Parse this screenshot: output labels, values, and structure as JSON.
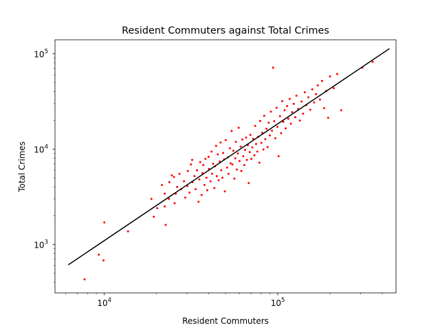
{
  "chart_data": {
    "type": "scatter",
    "title": "Resident Commuters against Total Crimes",
    "xlabel": "Resident Commuters",
    "ylabel": "Total Crimes",
    "xscale": "log",
    "yscale": "log",
    "xlim": [
      5200,
      480000
    ],
    "ylim": [
      310,
      140000
    ],
    "x_ticks": [
      {
        "base": "10",
        "exp": "4",
        "value": 10000
      },
      {
        "base": "10",
        "exp": "5",
        "value": 100000
      }
    ],
    "y_ticks": [
      {
        "base": "10",
        "exp": "3",
        "value": 1000
      },
      {
        "base": "10",
        "exp": "4",
        "value": 10000
      },
      {
        "base": "10",
        "exp": "5",
        "value": 100000
      }
    ],
    "grid": false,
    "colors": {
      "points": "#ff0000",
      "fit_line": "#000000",
      "axes": "#000000"
    },
    "fit_line": {
      "x": [
        6200,
        440000
      ],
      "y": [
        610,
        113000
      ]
    },
    "points": [
      [
        7700,
        430
      ],
      [
        9300,
        780
      ],
      [
        9900,
        680
      ],
      [
        10000,
        1700
      ],
      [
        13700,
        1370
      ],
      [
        18700,
        3000
      ],
      [
        19300,
        1950
      ],
      [
        20200,
        2400
      ],
      [
        21500,
        4200
      ],
      [
        22300,
        2500
      ],
      [
        22600,
        1600
      ],
      [
        22300,
        3400
      ],
      [
        23700,
        4500
      ],
      [
        23600,
        3000
      ],
      [
        24500,
        5300
      ],
      [
        25200,
        5100
      ],
      [
        25800,
        3400
      ],
      [
        26300,
        4000
      ],
      [
        25400,
        2700
      ],
      [
        27100,
        5500
      ],
      [
        27700,
        3800
      ],
      [
        28800,
        4600
      ],
      [
        29300,
        3100
      ],
      [
        30300,
        5900
      ],
      [
        30100,
        4100
      ],
      [
        31000,
        3500
      ],
      [
        31600,
        6900
      ],
      [
        32100,
        7700
      ],
      [
        32200,
        4500
      ],
      [
        33100,
        5200
      ],
      [
        33600,
        3800
      ],
      [
        34200,
        6000
      ],
      [
        34900,
        2800
      ],
      [
        35300,
        4800
      ],
      [
        35700,
        7300
      ],
      [
        36400,
        3300
      ],
      [
        36800,
        5600
      ],
      [
        37200,
        6800
      ],
      [
        37800,
        4200
      ],
      [
        38300,
        7900
      ],
      [
        38800,
        5000
      ],
      [
        39200,
        3700
      ],
      [
        39900,
        8300
      ],
      [
        40100,
        6200
      ],
      [
        40900,
        4600
      ],
      [
        41500,
        9400
      ],
      [
        41800,
        5500
      ],
      [
        42400,
        7000
      ],
      [
        43100,
        3900
      ],
      [
        43500,
        6600
      ],
      [
        44100,
        10800
      ],
      [
        44500,
        5200
      ],
      [
        45100,
        8800
      ],
      [
        45600,
        4700
      ],
      [
        46300,
        7400
      ],
      [
        46800,
        11700
      ],
      [
        47200,
        6000
      ],
      [
        47900,
        5000
      ],
      [
        48400,
        9100
      ],
      [
        49100,
        7800
      ],
      [
        49500,
        3600
      ],
      [
        50100,
        12400
      ],
      [
        51000,
        6400
      ],
      [
        51600,
        8200
      ],
      [
        52000,
        5500
      ],
      [
        52900,
        10200
      ],
      [
        53400,
        7100
      ],
      [
        54200,
        15500
      ],
      [
        54800,
        6900
      ],
      [
        55400,
        9600
      ],
      [
        56200,
        4900
      ],
      [
        56900,
        8000
      ],
      [
        57300,
        11900
      ],
      [
        58100,
        6100
      ],
      [
        58900,
        9000
      ],
      [
        59500,
        16700
      ],
      [
        60200,
        7500
      ],
      [
        61100,
        10600
      ],
      [
        61600,
        5900
      ],
      [
        62500,
        12600
      ],
      [
        63300,
        8400
      ],
      [
        64100,
        6800
      ],
      [
        64800,
        9800
      ],
      [
        65600,
        13200
      ],
      [
        66300,
        7700
      ],
      [
        67200,
        11000
      ],
      [
        68000,
        4400
      ],
      [
        68900,
        9300
      ],
      [
        69500,
        14100
      ],
      [
        70400,
        7900
      ],
      [
        71300,
        10400
      ],
      [
        72100,
        12800
      ],
      [
        73300,
        8600
      ],
      [
        74100,
        17500
      ],
      [
        75000,
        11300
      ],
      [
        76200,
        9400
      ],
      [
        77000,
        13500
      ],
      [
        78300,
        7200
      ],
      [
        79100,
        19700
      ],
      [
        80400,
        11600
      ],
      [
        81300,
        14800
      ],
      [
        82600,
        9900
      ],
      [
        83500,
        22300
      ],
      [
        84700,
        12700
      ],
      [
        86100,
        16300
      ],
      [
        87300,
        10500
      ],
      [
        88600,
        18900
      ],
      [
        90000,
        13900
      ],
      [
        91200,
        24700
      ],
      [
        92600,
        15600
      ],
      [
        93900,
        71500
      ],
      [
        95300,
        19600
      ],
      [
        96800,
        13000
      ],
      [
        98300,
        27100
      ],
      [
        99500,
        17100
      ],
      [
        101000,
        8400
      ],
      [
        103000,
        22100
      ],
      [
        104500,
        14700
      ],
      [
        106000,
        31800
      ],
      [
        107500,
        19300
      ],
      [
        109500,
        25500
      ],
      [
        111000,
        16500
      ],
      [
        113000,
        28200
      ],
      [
        115000,
        20800
      ],
      [
        117000,
        33500
      ],
      [
        119000,
        18500
      ],
      [
        121000,
        24400
      ],
      [
        123500,
        29800
      ],
      [
        126000,
        21600
      ],
      [
        128000,
        36300
      ],
      [
        131000,
        26300
      ],
      [
        134000,
        19900
      ],
      [
        137000,
        31500
      ],
      [
        140000,
        23500
      ],
      [
        143000,
        39400
      ],
      [
        146000,
        28900
      ],
      [
        150000,
        34900
      ],
      [
        154000,
        25900
      ],
      [
        158000,
        42300
      ],
      [
        162000,
        30800
      ],
      [
        166000,
        37700
      ],
      [
        170000,
        46500
      ],
      [
        175000,
        33100
      ],
      [
        180000,
        51800
      ],
      [
        185000,
        26800
      ],
      [
        190000,
        40700
      ],
      [
        195000,
        21300
      ],
      [
        200000,
        57800
      ],
      [
        210000,
        43500
      ],
      [
        220000,
        61300
      ],
      [
        232000,
        25500
      ],
      [
        307000,
        71500
      ],
      [
        352000,
        82300
      ]
    ]
  }
}
